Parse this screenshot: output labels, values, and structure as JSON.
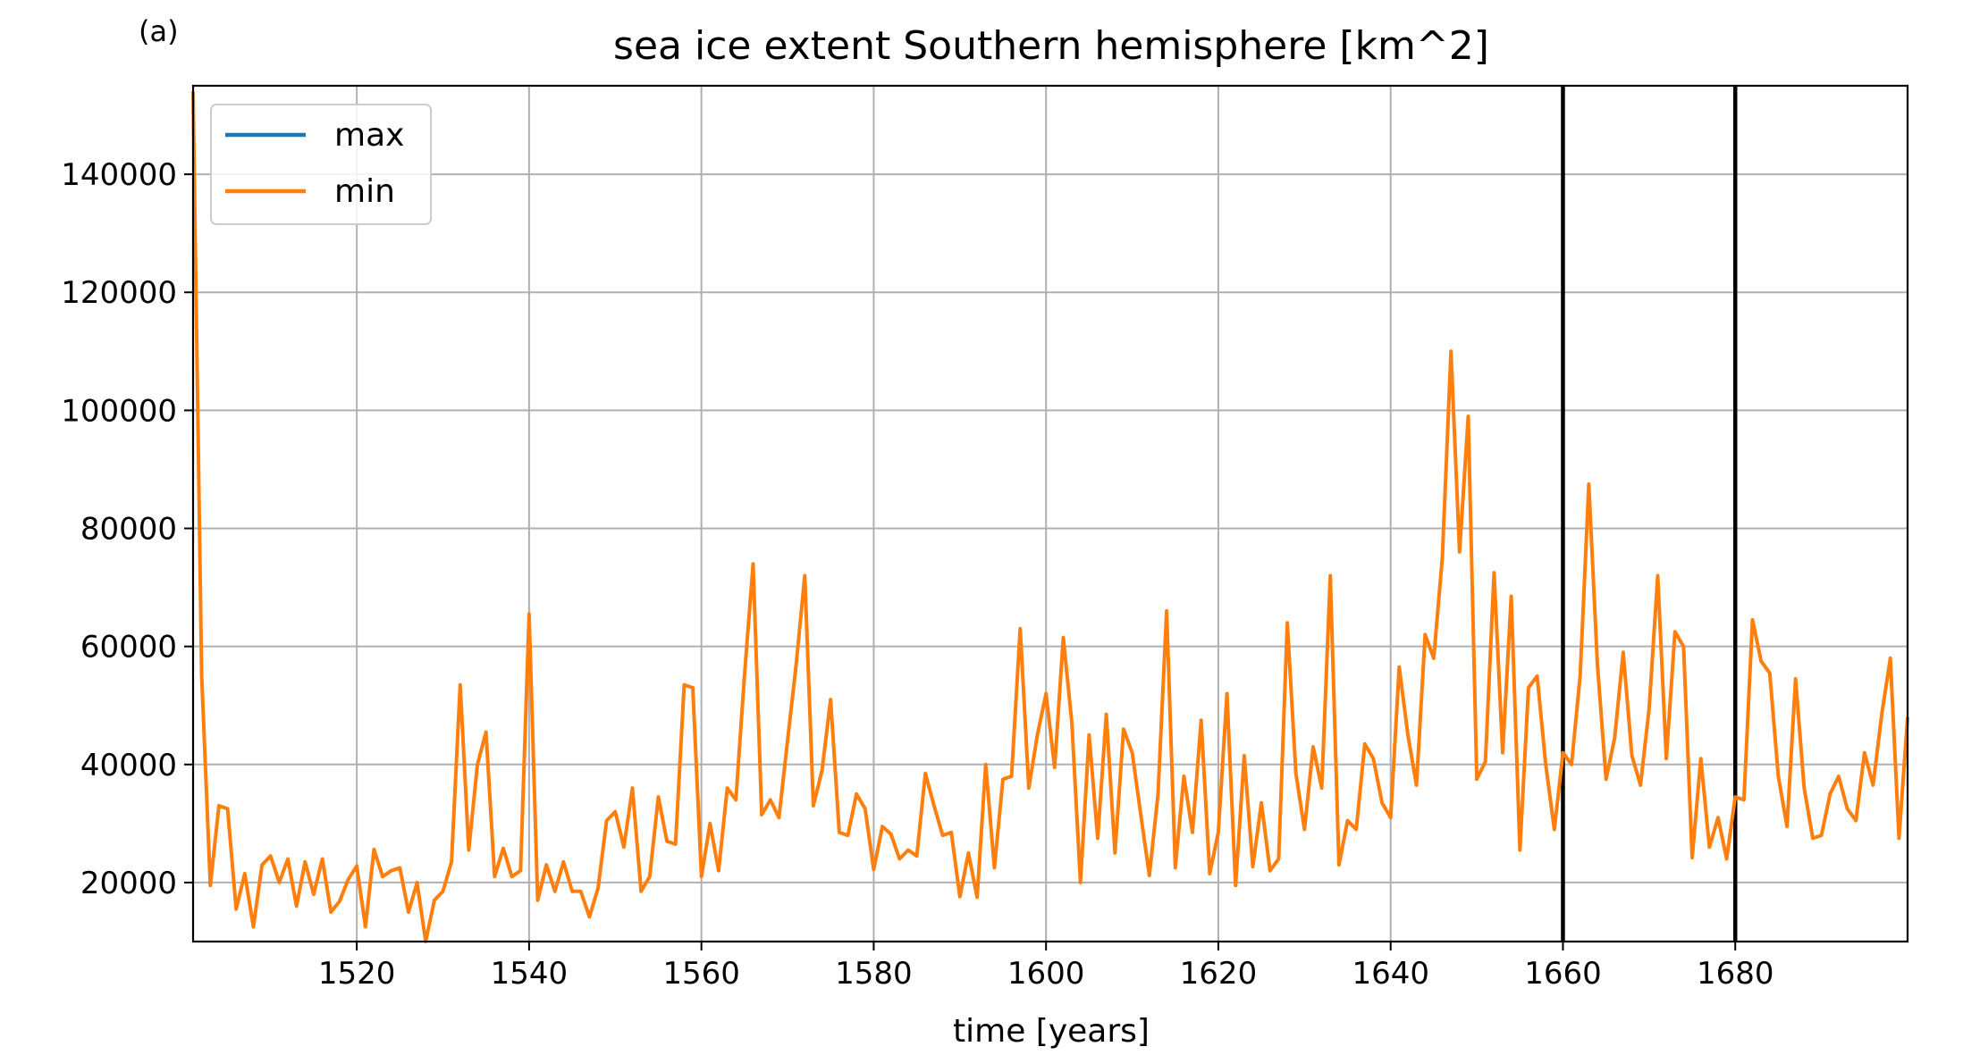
{
  "chart_data": {
    "type": "line",
    "panel_label": "(a)",
    "title": "sea ice extent Southern hemisphere [km^2]",
    "xlabel": "time [years]",
    "ylabel": "",
    "xlim": [
      1501,
      1700
    ],
    "ylim": [
      10000,
      155000
    ],
    "xticks": [
      1520,
      1540,
      1560,
      1580,
      1600,
      1620,
      1640,
      1660,
      1680
    ],
    "yticks": [
      20000,
      40000,
      60000,
      80000,
      100000,
      120000,
      140000
    ],
    "grid": true,
    "legend_position": "top-left",
    "vertical_lines": [
      1660,
      1680
    ],
    "vertical_line_color": "#000000",
    "series": [
      {
        "name": "max",
        "color": "#1f77b4",
        "x": [],
        "y": []
      },
      {
        "name": "min",
        "color": "#ff7f0e",
        "x": [
          1501,
          1502,
          1503,
          1504,
          1505,
          1506,
          1507,
          1508,
          1509,
          1510,
          1511,
          1512,
          1513,
          1514,
          1515,
          1516,
          1517,
          1518,
          1519,
          1520,
          1521,
          1522,
          1523,
          1524,
          1525,
          1526,
          1527,
          1528,
          1529,
          1530,
          1531,
          1532,
          1533,
          1534,
          1535,
          1536,
          1537,
          1538,
          1539,
          1540,
          1541,
          1542,
          1543,
          1544,
          1545,
          1546,
          1547,
          1548,
          1549,
          1550,
          1551,
          1552,
          1553,
          1554,
          1555,
          1556,
          1557,
          1558,
          1559,
          1560,
          1561,
          1562,
          1563,
          1564,
          1565,
          1566,
          1567,
          1568,
          1569,
          1570,
          1571,
          1572,
          1573,
          1574,
          1575,
          1576,
          1577,
          1578,
          1579,
          1580,
          1581,
          1582,
          1583,
          1584,
          1585,
          1586,
          1587,
          1588,
          1589,
          1590,
          1591,
          1592,
          1593,
          1594,
          1595,
          1596,
          1597,
          1598,
          1599,
          1600,
          1601,
          1602,
          1603,
          1604,
          1605,
          1606,
          1607,
          1608,
          1609,
          1610,
          1611,
          1612,
          1613,
          1614,
          1615,
          1616,
          1617,
          1618,
          1619,
          1620,
          1621,
          1622,
          1623,
          1624,
          1625,
          1626,
          1627,
          1628,
          1629,
          1630,
          1631,
          1632,
          1633,
          1634,
          1635,
          1636,
          1637,
          1638,
          1639,
          1640,
          1641,
          1642,
          1643,
          1644,
          1645,
          1646,
          1647,
          1648,
          1649,
          1650,
          1651,
          1652,
          1653,
          1654,
          1655,
          1656,
          1657,
          1658,
          1659,
          1660,
          1661,
          1662,
          1663,
          1664,
          1665,
          1666,
          1667,
          1668,
          1669,
          1670,
          1671,
          1672,
          1673,
          1674,
          1675,
          1676,
          1677,
          1678,
          1679,
          1680,
          1681,
          1682,
          1683,
          1684,
          1685,
          1686,
          1687,
          1688,
          1689,
          1690,
          1691,
          1692,
          1693,
          1694,
          1695,
          1696,
          1697,
          1698,
          1699,
          1700
        ],
        "y": [
          154000,
          55000,
          19500,
          33000,
          32500,
          15500,
          21500,
          12500,
          23000,
          24500,
          20000,
          24000,
          16000,
          23500,
          18000,
          24000,
          15000,
          16800,
          20500,
          22800,
          12500,
          25600,
          21000,
          22000,
          22500,
          15000,
          20000,
          10000,
          17000,
          18500,
          23500,
          53500,
          25500,
          40000,
          45500,
          21000,
          25800,
          21000,
          22000,
          65500,
          17000,
          23000,
          18500,
          23500,
          18500,
          18500,
          14200,
          19000,
          30500,
          32000,
          26000,
          36000,
          18500,
          21000,
          34500,
          27000,
          26500,
          53500,
          53000,
          21000,
          30000,
          22000,
          36000,
          34000,
          55000,
          74000,
          31500,
          34000,
          31000,
          44000,
          57000,
          72000,
          33000,
          39000,
          51000,
          28500,
          28000,
          35000,
          32500,
          22200,
          29500,
          28200,
          24000,
          25500,
          24500,
          38500,
          33000,
          28000,
          28500,
          17600,
          25000,
          17500,
          40000,
          22500,
          37500,
          38000,
          63000,
          36000,
          45000,
          52000,
          39500,
          61500,
          47000,
          20000,
          45000,
          27500,
          48500,
          25000,
          46000,
          42000,
          31500,
          21200,
          35000,
          66000,
          22500,
          38000,
          28500,
          47500,
          21500,
          28500,
          52000,
          19500,
          41500,
          22700,
          33500,
          22000,
          24000,
          64000,
          38500,
          29000,
          43000,
          36000,
          72000,
          23000,
          30500,
          29000,
          43500,
          41000,
          33500,
          31000,
          56500,
          45000,
          36500,
          62000,
          58000,
          75000,
          110000,
          76000,
          99000,
          37500,
          40500,
          72500,
          42000,
          68500,
          25500,
          53000,
          55000,
          40000,
          29000,
          42000,
          40000,
          55000,
          87500,
          57000,
          37500,
          44500,
          59000,
          41500,
          36500,
          49500,
          72000,
          41000,
          62500,
          60000,
          24200,
          41000,
          26000,
          31000,
          24000,
          34500,
          34000,
          64500,
          57500,
          55500,
          38000,
          29500,
          54500,
          36000,
          27500,
          28000,
          35000,
          38000,
          32500,
          30500,
          42000,
          36500,
          48500,
          58000,
          27500,
          48000
        ]
      }
    ]
  }
}
